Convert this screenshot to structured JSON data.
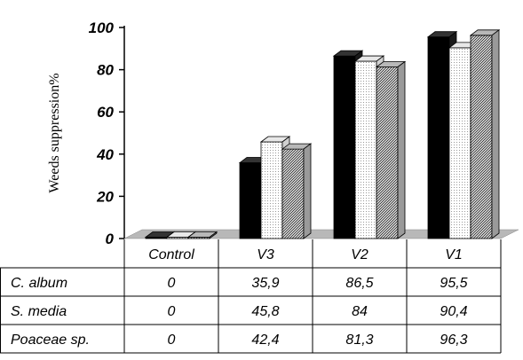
{
  "chart_data": {
    "type": "bar",
    "ylabel": "Weeds suppression%",
    "ylim": [
      0,
      100
    ],
    "yticks": [
      0,
      20,
      40,
      60,
      80,
      100
    ],
    "categories": [
      "Control",
      "V3",
      "V2",
      "V1"
    ],
    "series": [
      {
        "name": "C. album",
        "values": [
          0,
          35.9,
          86.5,
          95.5
        ],
        "pattern": "black"
      },
      {
        "name": "S. media",
        "values": [
          0,
          45.8,
          84,
          90.4
        ],
        "pattern": "dots"
      },
      {
        "name": "Poaceae sp.",
        "values": [
          0,
          42.4,
          81.3,
          96.3
        ],
        "pattern": "hatch"
      }
    ],
    "table": {
      "header": [
        "Control",
        "V3",
        "V2",
        "V1"
      ],
      "rows": [
        {
          "label": "C. album",
          "cells": [
            "0",
            "35,9",
            "86,5",
            "95,5"
          ]
        },
        {
          "label": "S. media",
          "cells": [
            "0",
            "45,8",
            "84",
            "90,4"
          ]
        },
        {
          "label": "Poaceae sp.",
          "cells": [
            "0",
            "42,4",
            "81,3",
            "96,3"
          ]
        }
      ]
    },
    "grid": false,
    "legend": "data-table"
  }
}
